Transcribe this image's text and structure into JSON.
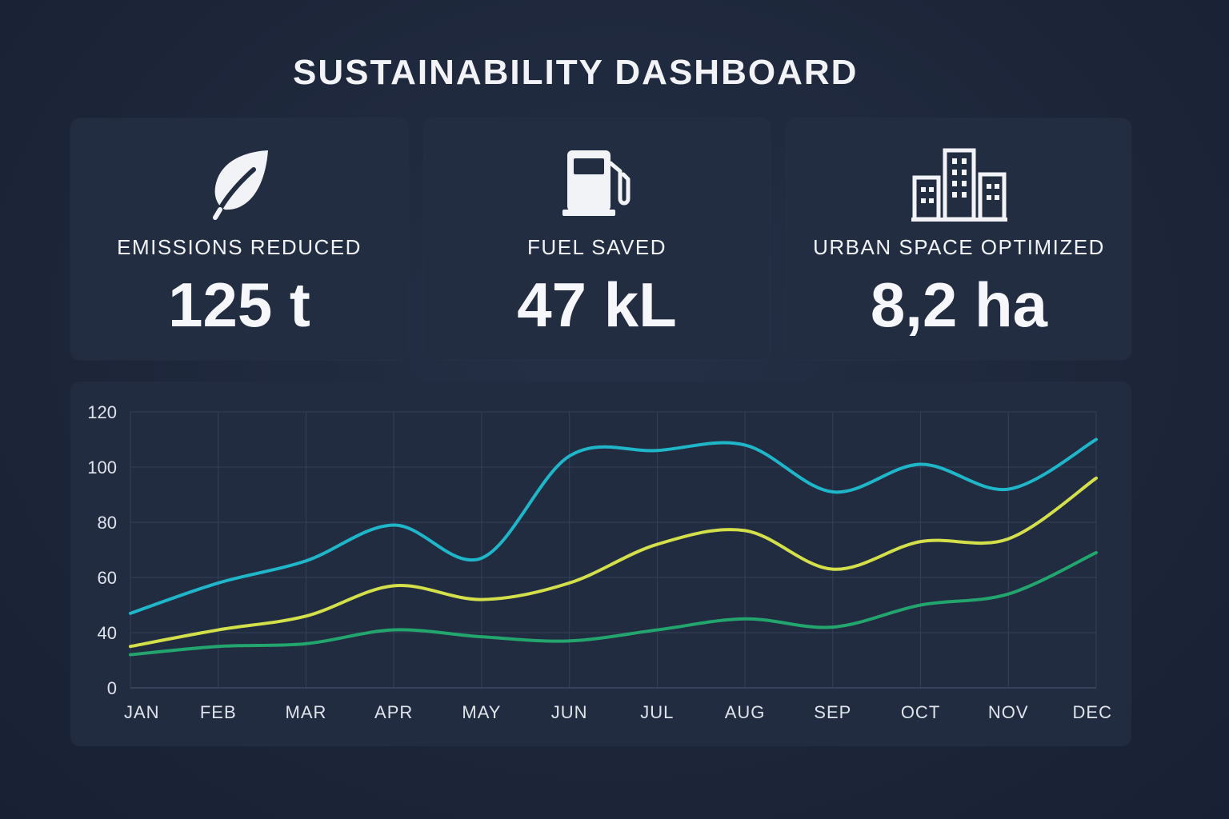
{
  "header": {
    "title": "SUSTAINABILITY DASHBOARD"
  },
  "cards": [
    {
      "label": "EMISSIONS REDUCED",
      "value": "125 t",
      "icon": "leaf-icon"
    },
    {
      "label": "FUEL SAVED",
      "value": "47 kL",
      "icon": "fuel-pump-icon"
    },
    {
      "label": "URBAN SPACE OPTIMIZED",
      "value": "8,2 ha",
      "icon": "buildings-icon"
    }
  ],
  "colors": {
    "background": "#1d2639",
    "card": "#232d41",
    "series_teal": "#1fb6c9",
    "series_yellow": "#d4e04a",
    "series_green": "#23a56e"
  },
  "chart_data": {
    "type": "line",
    "categories": [
      "JAN",
      "FEB",
      "MAR",
      "APR",
      "MAY",
      "JUN",
      "JUL",
      "AUG",
      "SEP",
      "OCT",
      "NOV",
      "DEC"
    ],
    "y_ticks": [
      "0",
      "40",
      "60",
      "80",
      "100",
      "120"
    ],
    "grid": true,
    "series": [
      {
        "color": "#1fb6c9",
        "values": [
          47,
          58,
          66,
          79,
          67,
          104,
          106,
          108,
          91,
          101,
          92,
          110
        ]
      },
      {
        "color": "#d4e04a",
        "values": [
          30,
          41,
          46,
          57,
          52,
          58,
          72,
          77,
          63,
          73,
          74,
          96
        ]
      },
      {
        "color": "#23a56e",
        "values": [
          24,
          30,
          32,
          41,
          37,
          34,
          41,
          45,
          42,
          50,
          54,
          69
        ]
      }
    ]
  }
}
